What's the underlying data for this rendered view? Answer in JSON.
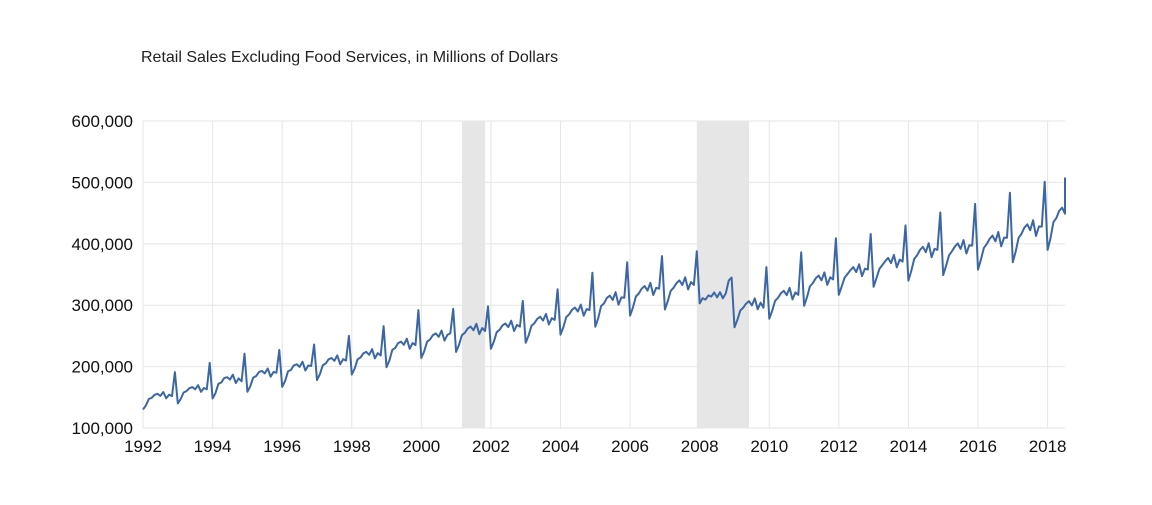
{
  "chart_data": {
    "type": "line",
    "title": "Retail Sales Excluding Food Services, in Millions of Dollars",
    "xlabel": "",
    "ylabel": "",
    "x_range": [
      1992.0,
      2018.5
    ],
    "ylim": [
      100000,
      600000
    ],
    "y_ticks": [
      100000,
      200000,
      300000,
      400000,
      500000,
      600000
    ],
    "y_tick_labels": [
      "100,000",
      "200,000",
      "300,000",
      "400,000",
      "500,000",
      "600,000"
    ],
    "x_ticks": [
      1992,
      1994,
      1996,
      1998,
      2000,
      2002,
      2004,
      2006,
      2008,
      2010,
      2012,
      2014,
      2016,
      2018
    ],
    "x_tick_labels": [
      "1992",
      "1994",
      "1996",
      "1998",
      "2000",
      "2002",
      "2004",
      "2006",
      "2008",
      "2010",
      "2012",
      "2014",
      "2016",
      "2018"
    ],
    "grid": true,
    "shaded_periods": [
      {
        "start": "2001-03",
        "end": "2001-11"
      },
      {
        "start": "2007-12",
        "end": "2009-06"
      }
    ],
    "series": [
      {
        "color": "#3c67a5",
        "frequency": "monthly",
        "start": "1992-01",
        "annual_values": [
          [
            1992,
            130000,
            152000,
            157000
          ],
          [
            1993,
            140000,
            163000,
            168000
          ],
          [
            1994,
            148000,
            176000,
            185000
          ],
          [
            1995,
            159000,
            190000,
            195000
          ],
          [
            1996,
            167000,
            201000,
            206000
          ],
          [
            1997,
            178000,
            210000,
            216000
          ],
          [
            1998,
            187000,
            218000,
            226000
          ],
          [
            1999,
            199000,
            235000,
            243000
          ],
          [
            2000,
            214000,
            254000,
            256000
          ],
          [
            2001,
            224000,
            258000,
            267000
          ],
          [
            2002,
            229000,
            265000,
            272000
          ],
          [
            2003,
            239000,
            276000,
            283000
          ],
          [
            2004,
            252000,
            292000,
            298000
          ],
          [
            2005,
            265000,
            312000,
            318000
          ],
          [
            2006,
            283000,
            327000,
            333000
          ],
          [
            2007,
            293000,
            333000,
            342000
          ],
          [
            2008,
            303000,
            340000,
            318000
          ],
          [
            2009,
            264000,
            296000,
            308000
          ],
          [
            2010,
            278000,
            317000,
            325000
          ],
          [
            2011,
            299000,
            342000,
            350000
          ],
          [
            2012,
            317000,
            358000,
            363000
          ],
          [
            2013,
            330000,
            371000,
            378000
          ],
          [
            2014,
            340000,
            390000,
            397000
          ],
          [
            2015,
            349000,
            397000,
            402000
          ],
          [
            2016,
            358000,
            410000,
            415000
          ],
          [
            2017,
            370000,
            428000,
            434000
          ],
          [
            2018,
            390000,
            455000,
            462000
          ]
        ],
        "december_values": [
          191000,
          206000,
          221000,
          227000,
          236000,
          250000,
          266000,
          292000,
          294000,
          298000,
          307000,
          326000,
          353000,
          370000,
          380000,
          388000,
          345000,
          362000,
          386000,
          409000,
          416000,
          430000,
          451000,
          465000,
          483000,
          501000
        ],
        "last_value": [
          2018.5,
          508000
        ]
      }
    ]
  }
}
